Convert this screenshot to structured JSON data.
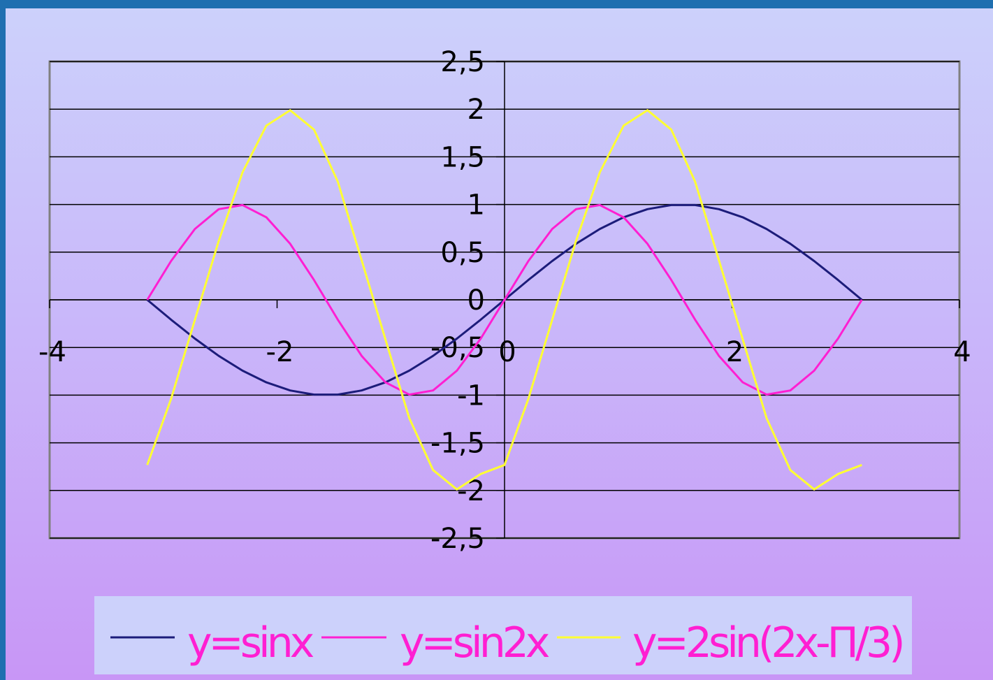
{
  "chart_data": {
    "type": "line",
    "title": "",
    "xlabel": "",
    "ylabel": "",
    "xlim": [
      -4,
      4
    ],
    "ylim": [
      -2.5,
      2.5
    ],
    "x_ticks": [
      "-4",
      "-2",
      "0",
      "2",
      "4"
    ],
    "y_ticks": [
      "2,5",
      "2",
      "1,5",
      "1",
      "0,5",
      "0",
      "-0,5",
      "-1",
      "-1,5",
      "-2",
      "-2,5"
    ],
    "y_tick_values": [
      2.5,
      2,
      1.5,
      1,
      0.5,
      0,
      -0.5,
      -1,
      -1.5,
      -2,
      -2.5
    ],
    "x_tick_values": [
      -4,
      -2,
      0,
      2,
      4
    ],
    "grid": "horizontal",
    "legend_position": "bottom",
    "x": [
      -3.1416,
      -2.9322,
      -2.7227,
      -2.5133,
      -2.3038,
      -2.0944,
      -1.885,
      -1.6755,
      -1.4661,
      -1.2566,
      -1.0472,
      -0.8378,
      -0.6283,
      -0.4189,
      -0.2094,
      0,
      0.2094,
      0.4189,
      0.6283,
      0.8378,
      1.0472,
      1.2566,
      1.4661,
      1.6755,
      1.885,
      2.0944,
      2.3038,
      2.5133,
      2.7227,
      2.9322,
      3.1416
    ],
    "series": [
      {
        "name": "y=sinx",
        "color": "#1c1c7a",
        "values": [
          0,
          -0.2079,
          -0.4067,
          -0.5878,
          -0.7431,
          -0.866,
          -0.9511,
          -0.9945,
          -0.9945,
          -0.9511,
          -0.866,
          -0.7431,
          -0.5878,
          -0.4067,
          -0.2079,
          0,
          0.2079,
          0.4067,
          0.5878,
          0.7431,
          0.866,
          0.9511,
          0.9945,
          0.9945,
          0.9511,
          0.866,
          0.7431,
          0.5878,
          0.4067,
          0.2079,
          0
        ]
      },
      {
        "name": "y=sin2x",
        "color": "#ff1fd2",
        "values": [
          0,
          0.4067,
          0.7431,
          0.9511,
          0.9945,
          0.866,
          0.5878,
          0.2079,
          -0.2079,
          -0.5878,
          -0.866,
          -0.9945,
          -0.9511,
          -0.7431,
          -0.4067,
          0,
          0.4067,
          0.7431,
          0.9511,
          0.9945,
          0.866,
          0.5878,
          0.2079,
          -0.2079,
          -0.5878,
          -0.866,
          -0.9945,
          -0.9511,
          -0.7431,
          -0.4067,
          0
        ]
      },
      {
        "name": "y=2sin(2x-П/3)",
        "color": "#ffff33",
        "values": [
          -1.7321,
          -1.0396,
          -0.2091,
          0.618,
          1.3383,
          1.8271,
          1.989,
          1.7856,
          1.2396,
          0.4158,
          -0.4158,
          -1.2396,
          -1.7856,
          -1.989,
          -1.8271,
          -1.7321,
          -1.0396,
          -0.2091,
          0.618,
          1.3383,
          1.8271,
          1.989,
          1.7856,
          1.2396,
          0.4158,
          -0.4158,
          -1.2396,
          -1.7856,
          -1.989,
          -1.8271,
          -1.7321
        ]
      }
    ]
  }
}
